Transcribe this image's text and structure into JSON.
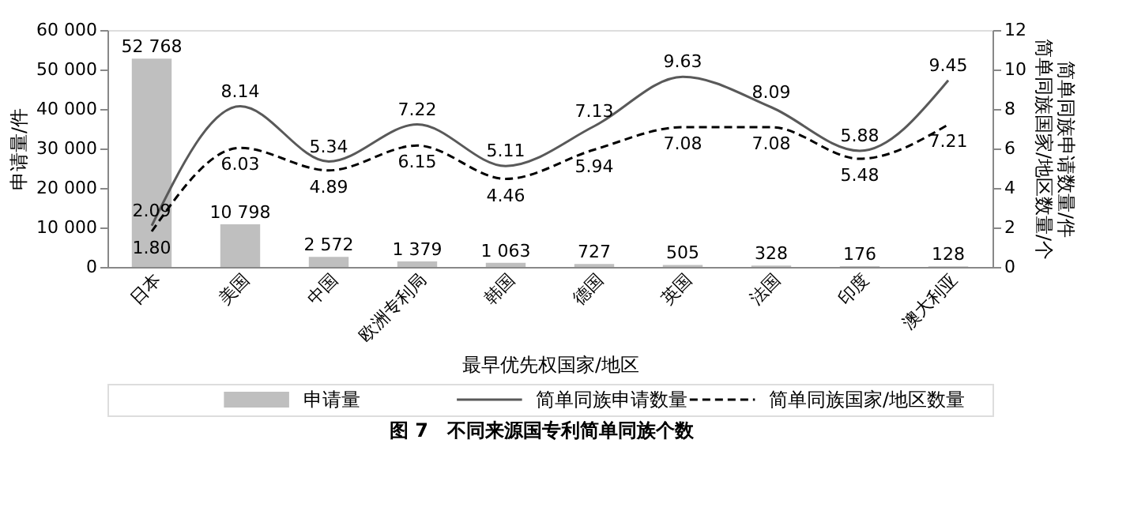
{
  "chart_data": {
    "type": "bar",
    "title": "图 7　不同来源国专利简单同族个数",
    "xlabel": "最早优先权国家/地区",
    "ylabel": "申请量/件",
    "y2label": "简单同族申请数量/件简单同族国家/地区数量/个",
    "categories": [
      "日本",
      "美国",
      "中国",
      "欧洲专利局",
      "韩国",
      "德国",
      "英国",
      "法国",
      "印度",
      "澳大利亚"
    ],
    "series": [
      {
        "name": "申请量",
        "color": "#bfbfbf",
        "values": [
          52768,
          10798,
          2572,
          1379,
          1063,
          727,
          505,
          328,
          176,
          128
        ],
        "value_labels": [
          "52 768",
          "10 798",
          "2 572",
          "1 379",
          "1 063",
          "727",
          "505",
          "328",
          "176",
          "128"
        ]
      },
      {
        "name": "简单同族申请数量",
        "type": "line",
        "axis": "y2",
        "line_style": "solid",
        "color": "#595959",
        "values": [
          2.09,
          8.14,
          5.34,
          7.22,
          5.11,
          7.13,
          9.63,
          8.09,
          5.88,
          9.45
        ],
        "value_labels": [
          "2.09",
          "8.14",
          "5.34",
          "7.22",
          "5.11",
          "7.13",
          "9.63",
          "8.09",
          "5.88",
          "9.45"
        ]
      },
      {
        "name": "简单同族国家/地区数量",
        "type": "line",
        "axis": "y2",
        "line_style": "dashed",
        "color": "#000000",
        "values": [
          1.8,
          6.03,
          4.89,
          6.15,
          4.46,
          5.94,
          7.08,
          7.08,
          5.48,
          7.21
        ],
        "value_labels": [
          "1.80",
          "6.03",
          "4.89",
          "6.15",
          "4.46",
          "5.94",
          "7.08",
          "7.08",
          "5.48",
          "7.21"
        ]
      }
    ],
    "ylim": [
      0,
      60000
    ],
    "yticks": [
      0,
      {
        "value": 10000,
        "label": "10 000"
      },
      {
        "value": 20000,
        "label": "20 000"
      },
      {
        "value": 30000,
        "label": "30 000"
      },
      {
        "value": 40000,
        "label": "40 000"
      },
      {
        "value": 50000,
        "label": "50 000"
      },
      {
        "value": 60000,
        "label": "60 000"
      }
    ],
    "y2lim": [
      0,
      12
    ],
    "y2ticks": [
      0,
      2,
      4,
      6,
      8,
      10,
      12
    ],
    "grid": false,
    "legend": "bottom"
  }
}
